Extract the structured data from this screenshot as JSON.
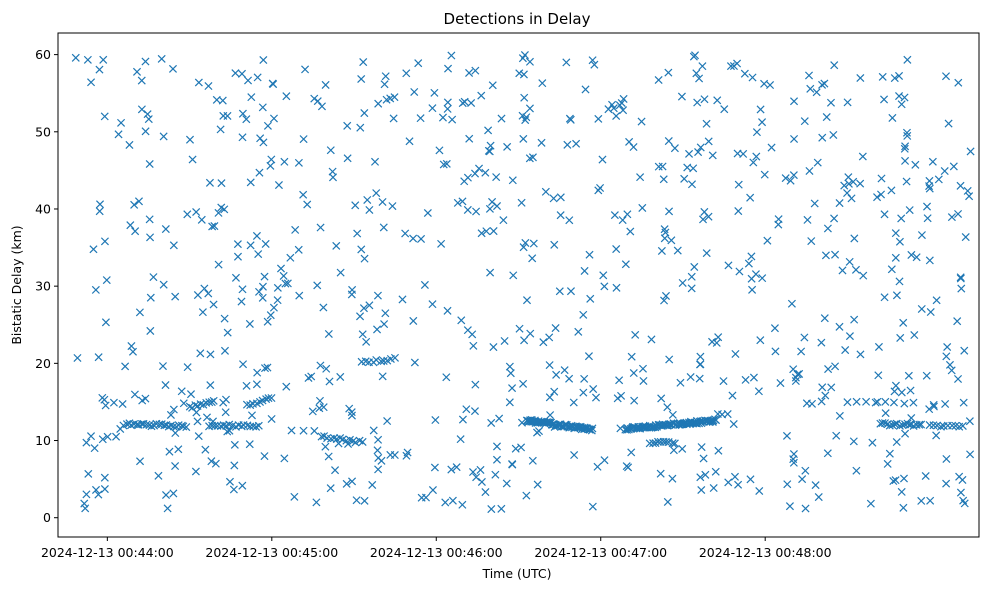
{
  "chart_data": {
    "type": "scatter",
    "title": "Detections in Delay",
    "xlabel": "Time (UTC)",
    "ylabel": "Bistatic Delay (km)",
    "x_unit": "minutes",
    "xlim": [
      43.7,
      49.3
    ],
    "ylim": [
      -2.5,
      62.8
    ],
    "x_ticks": [
      {
        "value": 44,
        "label": "2024-12-13 00:44:00"
      },
      {
        "value": 45,
        "label": "2024-12-13 00:45:00"
      },
      {
        "value": 46,
        "label": "2024-12-13 00:46:00"
      },
      {
        "value": 47,
        "label": "2024-12-13 00:47:00"
      },
      {
        "value": 48,
        "label": "2024-12-13 00:48:00"
      }
    ],
    "y_ticks": [
      0,
      10,
      20,
      30,
      40,
      50,
      60
    ],
    "grid": false,
    "legend": "none",
    "marker": "x",
    "color": "#1f77b4",
    "random_detections": {
      "count": 820,
      "x_range": [
        43.8,
        49.25
      ],
      "y_range": [
        1,
        60
      ]
    },
    "tracks": [
      {
        "x_range": [
          44.1,
          44.48
        ],
        "y_range": [
          12.1,
          11.9
        ],
        "n": 26
      },
      {
        "x_range": [
          44.5,
          44.65
        ],
        "y_range": [
          14.3,
          15.2
        ],
        "n": 10
      },
      {
        "x_range": [
          44.62,
          44.92
        ],
        "y_range": [
          12.0,
          11.9
        ],
        "n": 18
      },
      {
        "x_range": [
          44.85,
          45.0
        ],
        "y_range": [
          14.5,
          15.6
        ],
        "n": 9
      },
      {
        "x_range": [
          45.3,
          45.55
        ],
        "y_range": [
          10.5,
          9.8
        ],
        "n": 14
      },
      {
        "x_range": [
          45.55,
          45.75
        ],
        "y_range": [
          20.1,
          20.6
        ],
        "n": 10
      },
      {
        "x_range": [
          46.55,
          46.95
        ],
        "y_range": [
          12.6,
          11.4
        ],
        "n": 70
      },
      {
        "x_range": [
          47.15,
          47.7
        ],
        "y_range": [
          11.5,
          12.6
        ],
        "n": 90
      },
      {
        "x_range": [
          47.3,
          47.45
        ],
        "y_range": [
          9.8,
          9.6
        ],
        "n": 10
      },
      {
        "x_range": [
          48.5,
          48.9
        ],
        "y_range": [
          15.0,
          14.8
        ],
        "n": 8
      },
      {
        "x_range": [
          48.7,
          48.95
        ],
        "y_range": [
          12.1,
          12.0
        ],
        "n": 18
      },
      {
        "x_range": [
          49.0,
          49.2
        ],
        "y_range": [
          12.0,
          11.8
        ],
        "n": 10
      }
    ]
  }
}
